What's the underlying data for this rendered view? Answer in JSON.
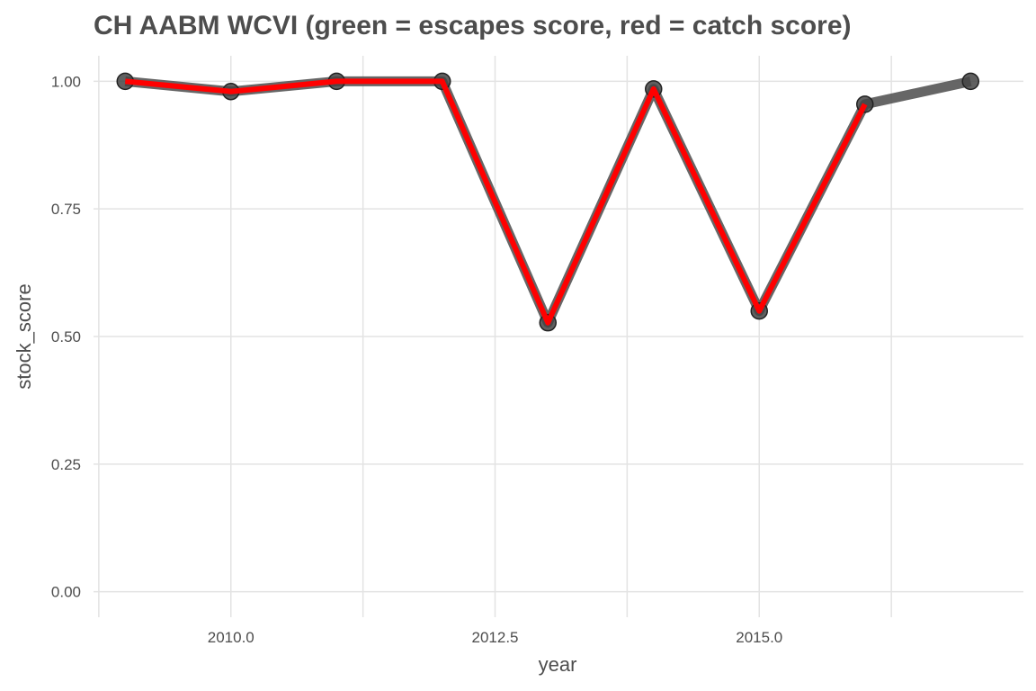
{
  "chart_data": {
    "type": "line",
    "title": "CH AABM WCVI (green = escapes score, red = catch score)",
    "xlabel": "year",
    "ylabel": "stock_score",
    "xlim": [
      2008.7,
      2017.5
    ],
    "ylim": [
      -0.05,
      1.05
    ],
    "xticks": [
      2010.0,
      2012.5,
      2015.0
    ],
    "xtick_labels": [
      "2010.0",
      "2012.5",
      "2015.0"
    ],
    "yticks": [
      0.0,
      0.25,
      0.5,
      0.75,
      1.0
    ],
    "ytick_labels": [
      "0.00",
      "0.25",
      "0.50",
      "0.75",
      "1.00"
    ],
    "grid": true,
    "series": [
      {
        "name": "stock score",
        "color": "#555555",
        "x": [
          2009,
          2010,
          2011,
          2012,
          2013,
          2014,
          2015,
          2016,
          2017
        ],
        "y": [
          1.0,
          0.98,
          1.0,
          1.0,
          0.527,
          0.985,
          0.55,
          0.955,
          1.0
        ],
        "markers": true
      },
      {
        "name": "catch score",
        "color": "#ff0000",
        "x": [
          2009,
          2010,
          2011,
          2012,
          2013,
          2014,
          2015,
          2016
        ],
        "y": [
          1.0,
          0.98,
          1.0,
          1.0,
          0.527,
          0.985,
          0.55,
          0.955
        ],
        "markers": false
      }
    ]
  }
}
